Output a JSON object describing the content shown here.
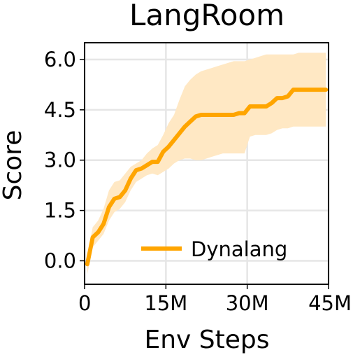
{
  "chart_data": {
    "type": "line",
    "title": "LangRoom",
    "xlabel": "Env Steps",
    "ylabel": "Score",
    "xlim": [
      0,
      45
    ],
    "ylim": [
      -0.7,
      6.5
    ],
    "x_ticks": [
      0,
      15,
      30,
      45
    ],
    "x_tick_labels": [
      "0",
      "15M",
      "30M",
      "45M"
    ],
    "y_ticks": [
      0.0,
      1.5,
      3.0,
      4.5,
      6.0
    ],
    "y_tick_labels": [
      "0.0",
      "1.5",
      "3.0",
      "4.5",
      "6.0"
    ],
    "grid": true,
    "legend_position": "lower-right",
    "series": [
      {
        "name": "Dynalang",
        "color": "#FFA500",
        "band_color": "#FFE8C4",
        "x": [
          0.5,
          1.5,
          2.5,
          3.5,
          4.5,
          5.5,
          6.5,
          7.5,
          8.5,
          9.5,
          10.5,
          11.5,
          12.5,
          13.5,
          14.5,
          15.5,
          16.5,
          17.5,
          18.5,
          19.5,
          20.5,
          21.5,
          22.5,
          23.5,
          24.5,
          25.5,
          26.5,
          27.5,
          28.5,
          29.5,
          30.5,
          31.5,
          32.5,
          33.5,
          34.5,
          35.5,
          36.5,
          37.5,
          38.5,
          39.5,
          40.5,
          41.5,
          42.5,
          43.5,
          44.5
        ],
        "y": [
          -0.1,
          0.7,
          0.85,
          1.1,
          1.6,
          1.85,
          1.9,
          2.1,
          2.45,
          2.7,
          2.75,
          2.85,
          2.95,
          2.95,
          3.25,
          3.4,
          3.6,
          3.8,
          4.0,
          4.15,
          4.3,
          4.35,
          4.35,
          4.35,
          4.35,
          4.35,
          4.35,
          4.35,
          4.4,
          4.4,
          4.6,
          4.6,
          4.6,
          4.6,
          4.7,
          4.85,
          4.85,
          4.9,
          5.1,
          5.1,
          5.1,
          5.1,
          5.1,
          5.1,
          5.1
        ],
        "lower": [
          -0.4,
          0.4,
          0.6,
          0.8,
          1.2,
          1.45,
          1.55,
          1.75,
          2.1,
          2.35,
          2.45,
          2.55,
          2.6,
          2.55,
          2.65,
          2.75,
          2.9,
          3.0,
          3.05,
          3.05,
          3.0,
          3.0,
          3.05,
          3.1,
          3.15,
          3.2,
          3.2,
          3.2,
          3.2,
          3.2,
          3.7,
          3.75,
          3.75,
          3.75,
          3.8,
          3.9,
          3.95,
          3.95,
          4.0,
          4.0,
          4.0,
          4.0,
          4.0,
          4.0,
          4.0
        ],
        "upper": [
          0.2,
          1.0,
          1.2,
          1.55,
          2.1,
          2.35,
          2.4,
          2.6,
          2.8,
          2.9,
          3.0,
          3.2,
          3.35,
          3.45,
          3.75,
          4.1,
          4.35,
          4.8,
          5.2,
          5.4,
          5.55,
          5.65,
          5.7,
          5.75,
          5.8,
          5.85,
          5.9,
          5.95,
          5.95,
          5.95,
          6.0,
          6.05,
          6.1,
          6.15,
          6.15,
          6.15,
          6.15,
          6.15,
          6.15,
          6.2,
          6.2,
          6.2,
          6.2,
          6.2,
          6.2
        ]
      }
    ]
  }
}
